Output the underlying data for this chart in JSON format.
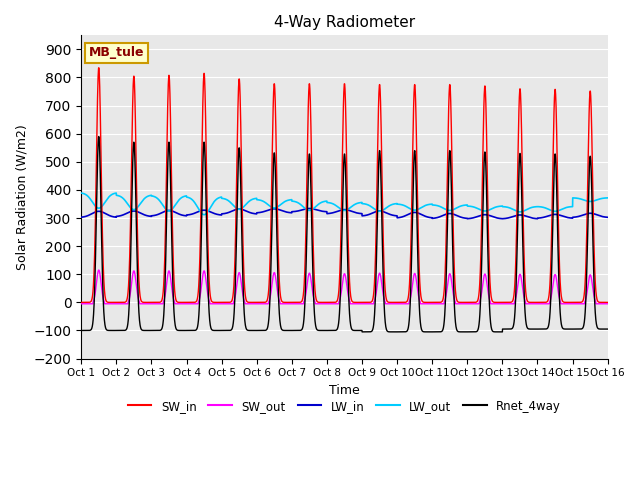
{
  "title": "4-Way Radiometer",
  "xlabel": "Time",
  "ylabel": "Solar Radiation (W/m2)",
  "ylim": [
    -200,
    950
  ],
  "yticks": [
    -200,
    -100,
    0,
    100,
    200,
    300,
    400,
    500,
    600,
    700,
    800,
    900
  ],
  "xtick_labels": [
    "Oct 1",
    "Oct 2",
    "Oct 3",
    "Oct 4",
    "Oct 5",
    "Oct 6",
    "Oct 7",
    "Oct 8",
    "Oct 9",
    "Oct 10",
    "Oct 11",
    "Oct 12",
    "Oct 13",
    "Oct 14",
    "Oct 15",
    "Oct 16"
  ],
  "n_days": 15,
  "annotation_label": "MB_tule",
  "annotation_bg": "#ffffcc",
  "annotation_border": "#cc9900",
  "background_color": "#e8e8e8",
  "SW_in_color": "#ff0000",
  "SW_out_color": "#ff00ff",
  "LW_in_color": "#0000cc",
  "LW_out_color": "#00ccff",
  "Rnet_color": "#000000",
  "SW_in_peaks": [
    835,
    805,
    808,
    815,
    795,
    778,
    778,
    778,
    775,
    775,
    775,
    770,
    760,
    758,
    752
  ],
  "SW_out_peaks": [
    115,
    112,
    112,
    112,
    106,
    106,
    104,
    102,
    104,
    103,
    102,
    101,
    100,
    99,
    98
  ],
  "LW_in_base": [
    302,
    305,
    307,
    310,
    314,
    318,
    322,
    315,
    307,
    300,
    298,
    297,
    297,
    299,
    302
  ],
  "LW_in_peak_add": [
    22,
    20,
    20,
    18,
    18,
    15,
    12,
    15,
    18,
    20,
    18,
    15,
    14,
    14,
    15
  ],
  "LW_out_base": [
    390,
    382,
    380,
    376,
    371,
    366,
    361,
    356,
    352,
    350,
    347,
    343,
    341,
    341,
    372
  ],
  "LW_out_dip": [
    55,
    52,
    55,
    64,
    40,
    30,
    34,
    29,
    28,
    22,
    20,
    18,
    19,
    17,
    13
  ],
  "Rnet_peaks": [
    590,
    570,
    570,
    570,
    550,
    532,
    528,
    528,
    540,
    540,
    540,
    535,
    530,
    528,
    520
  ],
  "Rnet_night": [
    -100,
    -100,
    -100,
    -100,
    -100,
    -100,
    -100,
    -100,
    -105,
    -105,
    -105,
    -105,
    -95,
    -95,
    -95
  ],
  "legend_entries": [
    "SW_in",
    "SW_out",
    "LW_in",
    "LW_out",
    "Rnet_4way"
  ],
  "legend_colors": [
    "#ff0000",
    "#ff00ff",
    "#0000cc",
    "#00ccff",
    "#000000"
  ]
}
